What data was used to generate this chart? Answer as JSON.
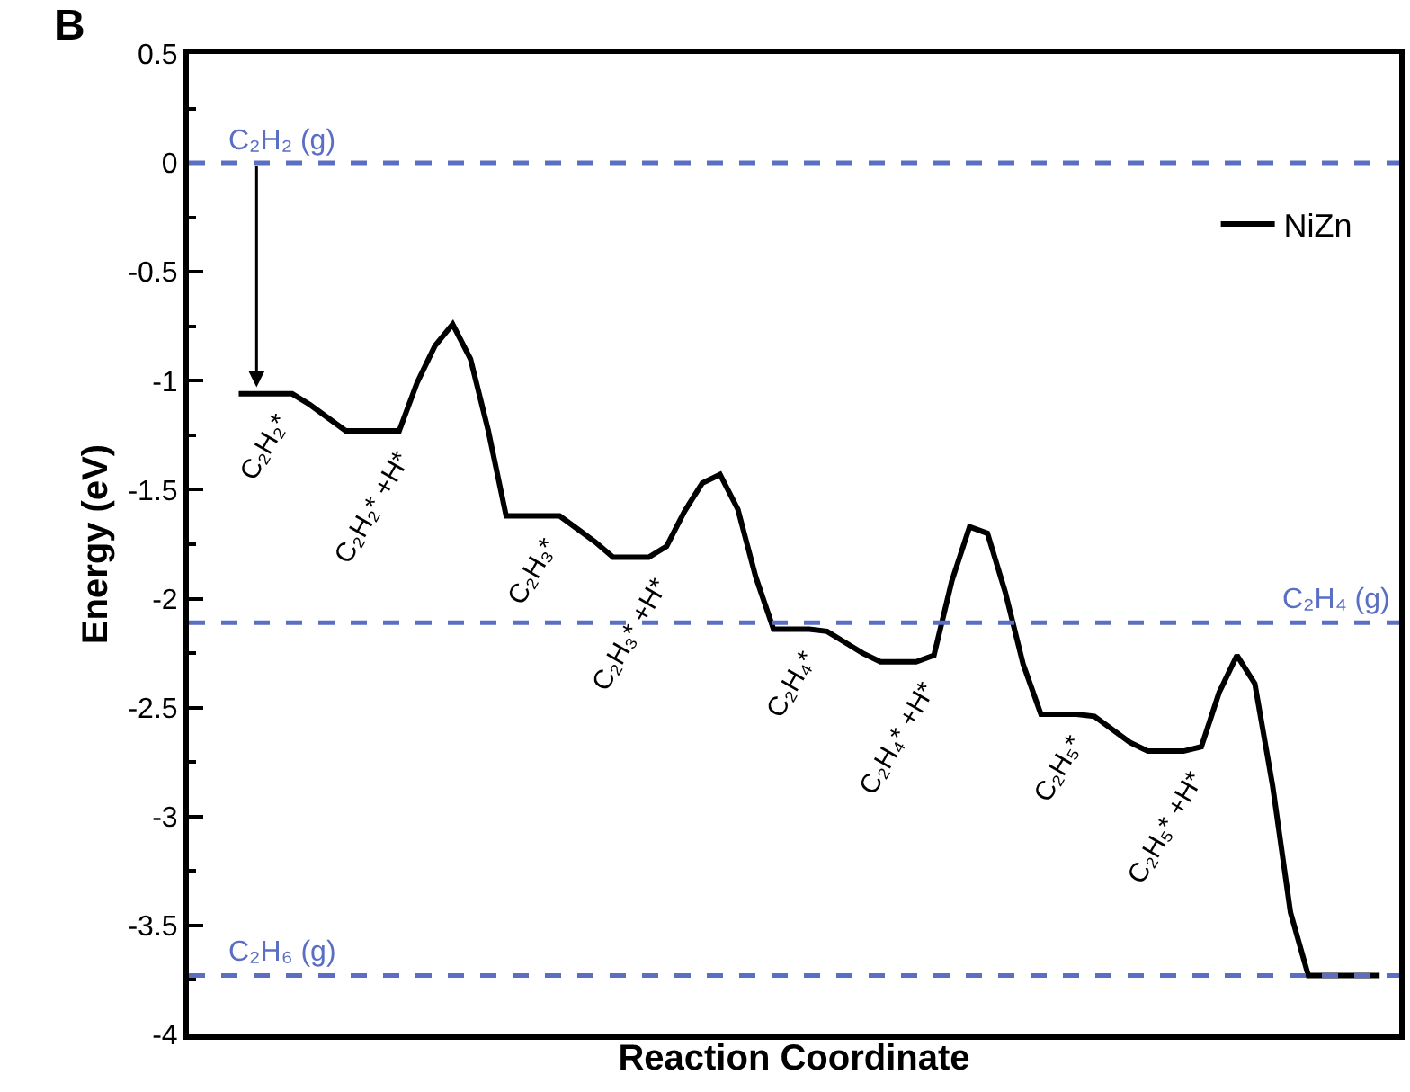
{
  "chart_data": {
    "type": "line",
    "title": "B",
    "xlabel": "Reaction Coordinate",
    "ylabel": "Energy (eV)",
    "categories": [
      null,
      null,
      null,
      null,
      null,
      null,
      null,
      null,
      null,
      null,
      null,
      null,
      null,
      null,
      null,
      null,
      null,
      null,
      null,
      null,
      null,
      null,
      null,
      null,
      null,
      null,
      null,
      null,
      null,
      null,
      null,
      null,
      null,
      null,
      null,
      null,
      null,
      null,
      null,
      null,
      null,
      null,
      null,
      null,
      null,
      null,
      null,
      null,
      null,
      null,
      null,
      null,
      null,
      null,
      null,
      null,
      null,
      null,
      null,
      null,
      null,
      null,
      null,
      null,
      null
    ],
    "series": [
      {
        "name": "NiZn",
        "color": "#000000",
        "values": [
          -1.06,
          -1.06,
          -1.06,
          -1.06,
          -1.11,
          -1.17,
          -1.23,
          -1.23,
          -1.23,
          -1.23,
          -1.01,
          -0.84,
          -0.74,
          -0.9,
          -1.23,
          -1.62,
          -1.62,
          -1.62,
          -1.62,
          -1.68,
          -1.74,
          -1.81,
          -1.81,
          -1.81,
          -1.76,
          -1.6,
          -1.47,
          -1.43,
          -1.59,
          -1.9,
          -2.14,
          -2.14,
          -2.14,
          -2.15,
          -2.2,
          -2.25,
          -2.29,
          -2.29,
          -2.29,
          -2.26,
          -1.92,
          -1.67,
          -1.7,
          -1.97,
          -2.3,
          -2.53,
          -2.53,
          -2.53,
          -2.54,
          -2.6,
          -2.66,
          -2.7,
          -2.7,
          -2.7,
          -2.68,
          -2.43,
          -2.26,
          -2.39,
          -2.86,
          -3.44,
          -3.73,
          -3.73,
          -3.73,
          -3.73,
          -3.73
        ]
      }
    ],
    "ylim": [
      -4,
      0.5
    ],
    "yticks": [
      -4,
      -3.5,
      -3,
      -2.5,
      -2,
      -1.5,
      -1,
      -0.5,
      0,
      0.5
    ],
    "ref_lines": [
      {
        "axis": "y",
        "value": 0,
        "label": "C₂H₂ (g)",
        "color": "#5a6ec4",
        "line_style": "dashed"
      },
      {
        "axis": "y",
        "value": -2.11,
        "label": "C₂H₄ (g)",
        "color": "#5a6ec4",
        "line_style": "dashed"
      },
      {
        "axis": "y",
        "value": -3.73,
        "label": "C₂H₆ (g)",
        "color": "#5a6ec4",
        "line_style": "dashed"
      }
    ],
    "annotations": [
      "C₂H₂*",
      "C₂H₂* +H*",
      "C₂H₃*",
      "C₂H₃* +H*",
      "C₂H₄*",
      "C₂H₄* +H*",
      "C₂H₅*",
      "C₂H₅* +H*"
    ],
    "legend": "top right",
    "tick_labels": "y",
    "line_style": "solid",
    "marker": "none"
  }
}
